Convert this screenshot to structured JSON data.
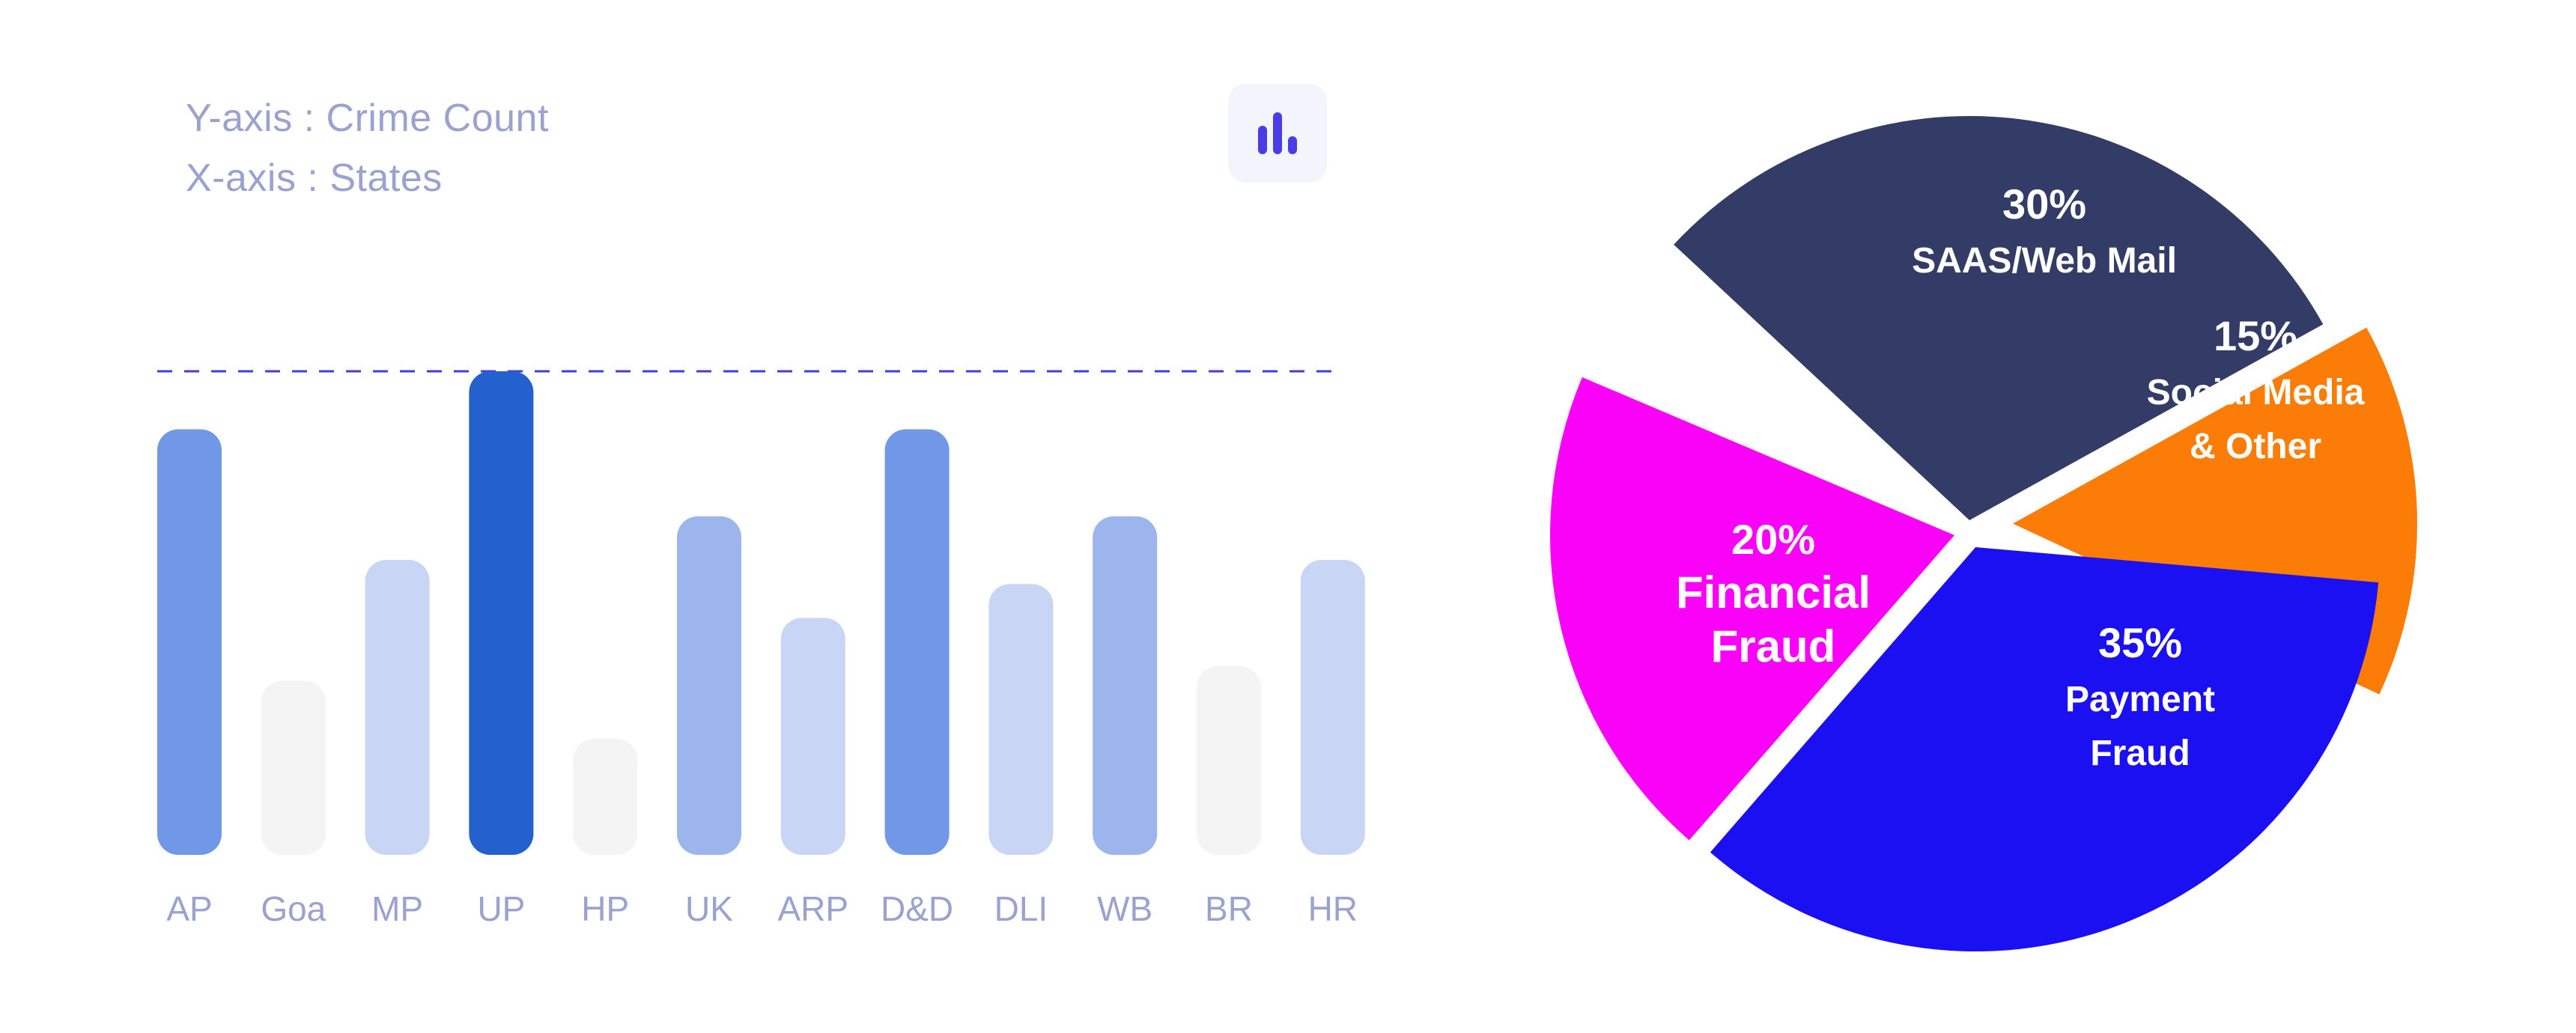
{
  "notes": {
    "y_axis": "Y-axis : Crime Count",
    "x_axis": "X-axis : States"
  },
  "toggle": {
    "icon": "bar-chart-icon",
    "color": "#4a3de8"
  },
  "colors": {
    "level_1": "#f4f4f4",
    "level_2": "#c8d5f5",
    "level_3": "#9cb5ec",
    "level_4": "#7098e6",
    "level_5": "#2560cf",
    "dashed_line": "#3f3fe0",
    "tick_label": "#9aa3cf"
  },
  "chart_data": [
    {
      "type": "bar",
      "xlabel": "States",
      "ylabel": "Crime Count",
      "categories": [
        "AP",
        "Goa",
        "MP",
        "UP",
        "HP",
        "UK",
        "ARP",
        "D&D",
        "DLI",
        "WB",
        "BR",
        "HR"
      ],
      "values": [
        88,
        36,
        61,
        100,
        24,
        70,
        49,
        88,
        56,
        70,
        39,
        61
      ],
      "intensity": [
        4,
        1,
        2,
        5,
        1,
        3,
        2,
        4,
        2,
        3,
        1,
        2
      ],
      "ylim": [
        0,
        100
      ],
      "reference_line": 100,
      "grid": false
    },
    {
      "type": "pie",
      "slices": [
        {
          "percent": "30%",
          "label": [
            "SAAS/Web Mail"
          ],
          "value": 30,
          "color": "#333c66"
        },
        {
          "percent": "15%",
          "label": [
            "Social Media",
            "& Other"
          ],
          "value": 15,
          "color": "#fb7c06"
        },
        {
          "percent": "35%",
          "label": [
            "Payment",
            "Fraud"
          ],
          "value": 35,
          "color": "#1a10f2"
        },
        {
          "percent": "20%",
          "label": [
            "Financial",
            "Fraud"
          ],
          "value": 20,
          "color": "#f902f7"
        }
      ]
    }
  ]
}
